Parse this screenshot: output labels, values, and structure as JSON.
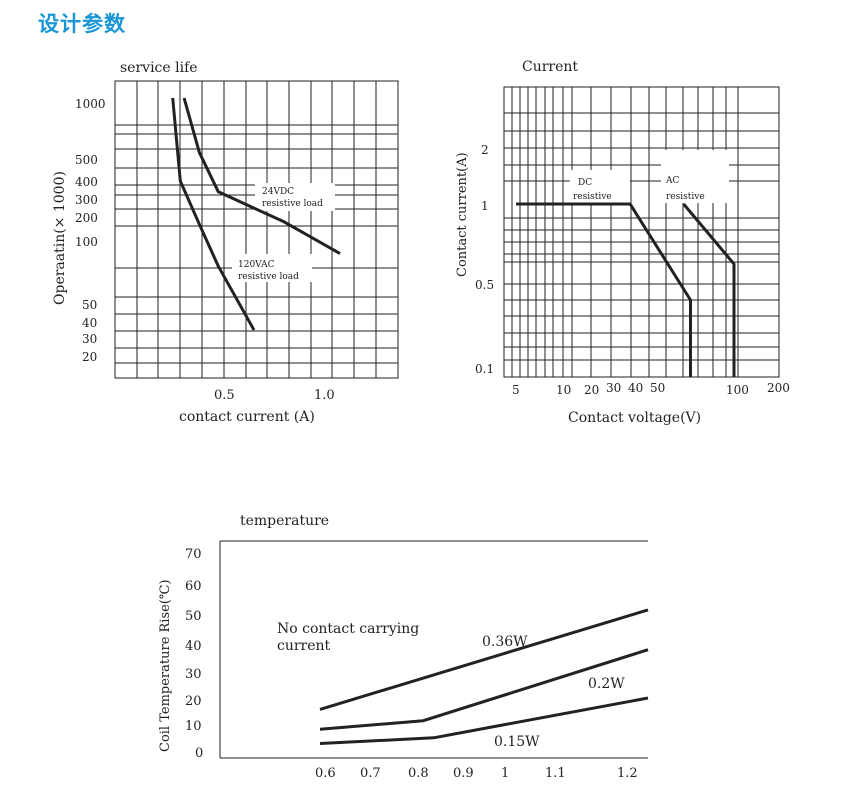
{
  "heading": "设计参数",
  "colors": {
    "heading": "#1a96d6",
    "ink": "#222222"
  },
  "chart_data": [
    {
      "type": "line",
      "title": "service life",
      "xlabel": "contact current (A)",
      "ylabel": "Operaatin(× 1000)",
      "x_ticks": [
        "0.5",
        "1.0"
      ],
      "y_ticks": [
        "1000",
        "500",
        "400",
        "300",
        "200",
        "100",
        "50",
        "40",
        "30",
        "20"
      ],
      "series": [
        {
          "name": "24VDC\nresistive load",
          "x": [
            0.29,
            0.37,
            0.47,
            0.8,
            1.08
          ],
          "y": [
            1300,
            560,
            340,
            180,
            90
          ]
        },
        {
          "name": "120VAC\nresistive load",
          "x": [
            0.23,
            0.27,
            0.37,
            0.47,
            0.65
          ],
          "y": [
            1300,
            400,
            170,
            80,
            35
          ]
        }
      ],
      "annotations": [
        "24VDC",
        "resistive load",
        "120VAC",
        "resistive load"
      ]
    },
    {
      "type": "line",
      "title": "Current",
      "xlabel": "Contact voltage(V)",
      "ylabel": "Contact current(A)",
      "x_ticks": [
        "5",
        "10",
        "20",
        "30",
        "40",
        "50",
        "100",
        "200"
      ],
      "y_ticks": [
        "2",
        "1",
        "0.5",
        "0.1"
      ],
      "series": [
        {
          "name": "DC\nresistive",
          "x": [
            5,
            24,
            55,
            55
          ],
          "y": [
            1,
            1,
            0.4,
            0.1
          ]
        },
        {
          "name": "AC\nresistive",
          "x": [
            50,
            100,
            100
          ],
          "y": [
            1,
            0.6,
            0.1
          ]
        }
      ],
      "annotations": [
        "DC",
        "resistive",
        "AC",
        "resistive"
      ]
    },
    {
      "type": "line",
      "title": "temperature",
      "xlabel": "",
      "ylabel": "Coil Temperature Rise(℃)",
      "x_ticks": [
        "0.6",
        "0.7",
        "0.8",
        "0.9",
        "1",
        "1.1",
        "1.2"
      ],
      "y_ticks": [
        "70",
        "60",
        "50",
        "40",
        "30",
        "20",
        "10",
        "0"
      ],
      "series": [
        {
          "name": "0.36W",
          "x": [
            0.6,
            1.22
          ],
          "y": [
            15,
            50
          ]
        },
        {
          "name": "0.2W",
          "x": [
            0.6,
            0.8,
            1.22
          ],
          "y": [
            8,
            11,
            36
          ]
        },
        {
          "name": "0.15W",
          "x": [
            0.6,
            0.82,
            1.22
          ],
          "y": [
            3,
            5,
            19
          ]
        }
      ],
      "annotations": [
        "No contact carrying",
        "current"
      ]
    }
  ]
}
